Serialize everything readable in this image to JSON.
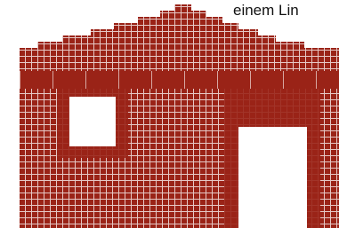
{
  "caption": "einem Lin"
}
